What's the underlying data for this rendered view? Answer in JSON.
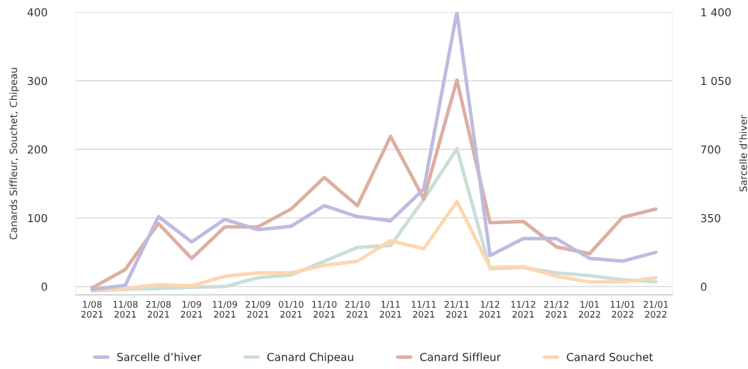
{
  "chart_data": {
    "type": "line",
    "ylabel": "Canards Siffleur, Souchet, Chipeau",
    "y2label": "Sarcelle d’hiver",
    "categories": [
      "1/08\n2021",
      "11/08\n2021",
      "21/08\n2021",
      "1/09\n2021",
      "11/09\n2021",
      "21/09\n2021",
      "01/10\n2021",
      "11/10\n2021",
      "21/10\n2021",
      "1/11\n2021",
      "11/11\n2021",
      "21/11\n2021",
      "1/12\n2021",
      "11/12\n2021",
      "21/12\n2021",
      "1/01\n2022",
      "11/01\n2022",
      "21/01\n2022"
    ],
    "series": [
      {
        "name": "Sarcelle d’hiver",
        "color": "#bdbbe0",
        "axis": "y2",
        "values": [
          -15,
          7,
          357,
          228,
          343,
          290,
          308,
          413,
          357,
          336,
          497,
          1400,
          158,
          245,
          245,
          144,
          130,
          175
        ]
      },
      {
        "name": "Canard Chipeau",
        "color": "#c9ded7",
        "values": [
          -6,
          -4,
          -3,
          -1,
          0,
          13,
          17,
          37,
          57,
          60,
          127,
          201,
          26,
          28,
          20,
          16,
          10,
          7
        ]
      },
      {
        "name": "Canard Siffleur",
        "color": "#ddaea2",
        "values": [
          -2,
          25,
          92,
          41,
          87,
          87,
          113,
          159,
          118,
          219,
          128,
          301,
          93,
          95,
          58,
          48,
          101,
          113
        ]
      },
      {
        "name": "Canard Souchet",
        "color": "#fed6ae",
        "values": [
          -5,
          -3,
          3,
          1,
          15,
          20,
          20,
          31,
          37,
          67,
          55,
          124,
          28,
          29,
          15,
          7,
          7,
          13
        ]
      }
    ],
    "ylim": [
      -12,
      400
    ],
    "yticks": [
      0,
      100,
      200,
      300,
      400
    ],
    "y2lim": [
      -42,
      1400
    ],
    "y2ticks": [
      0,
      350,
      700,
      {
        "value": 1050,
        "label": "1 050"
      },
      {
        "value": 1400,
        "label": "1 400"
      }
    ],
    "grid": "y",
    "legend": "bottom",
    "line_style": "solid",
    "marker": "none"
  }
}
